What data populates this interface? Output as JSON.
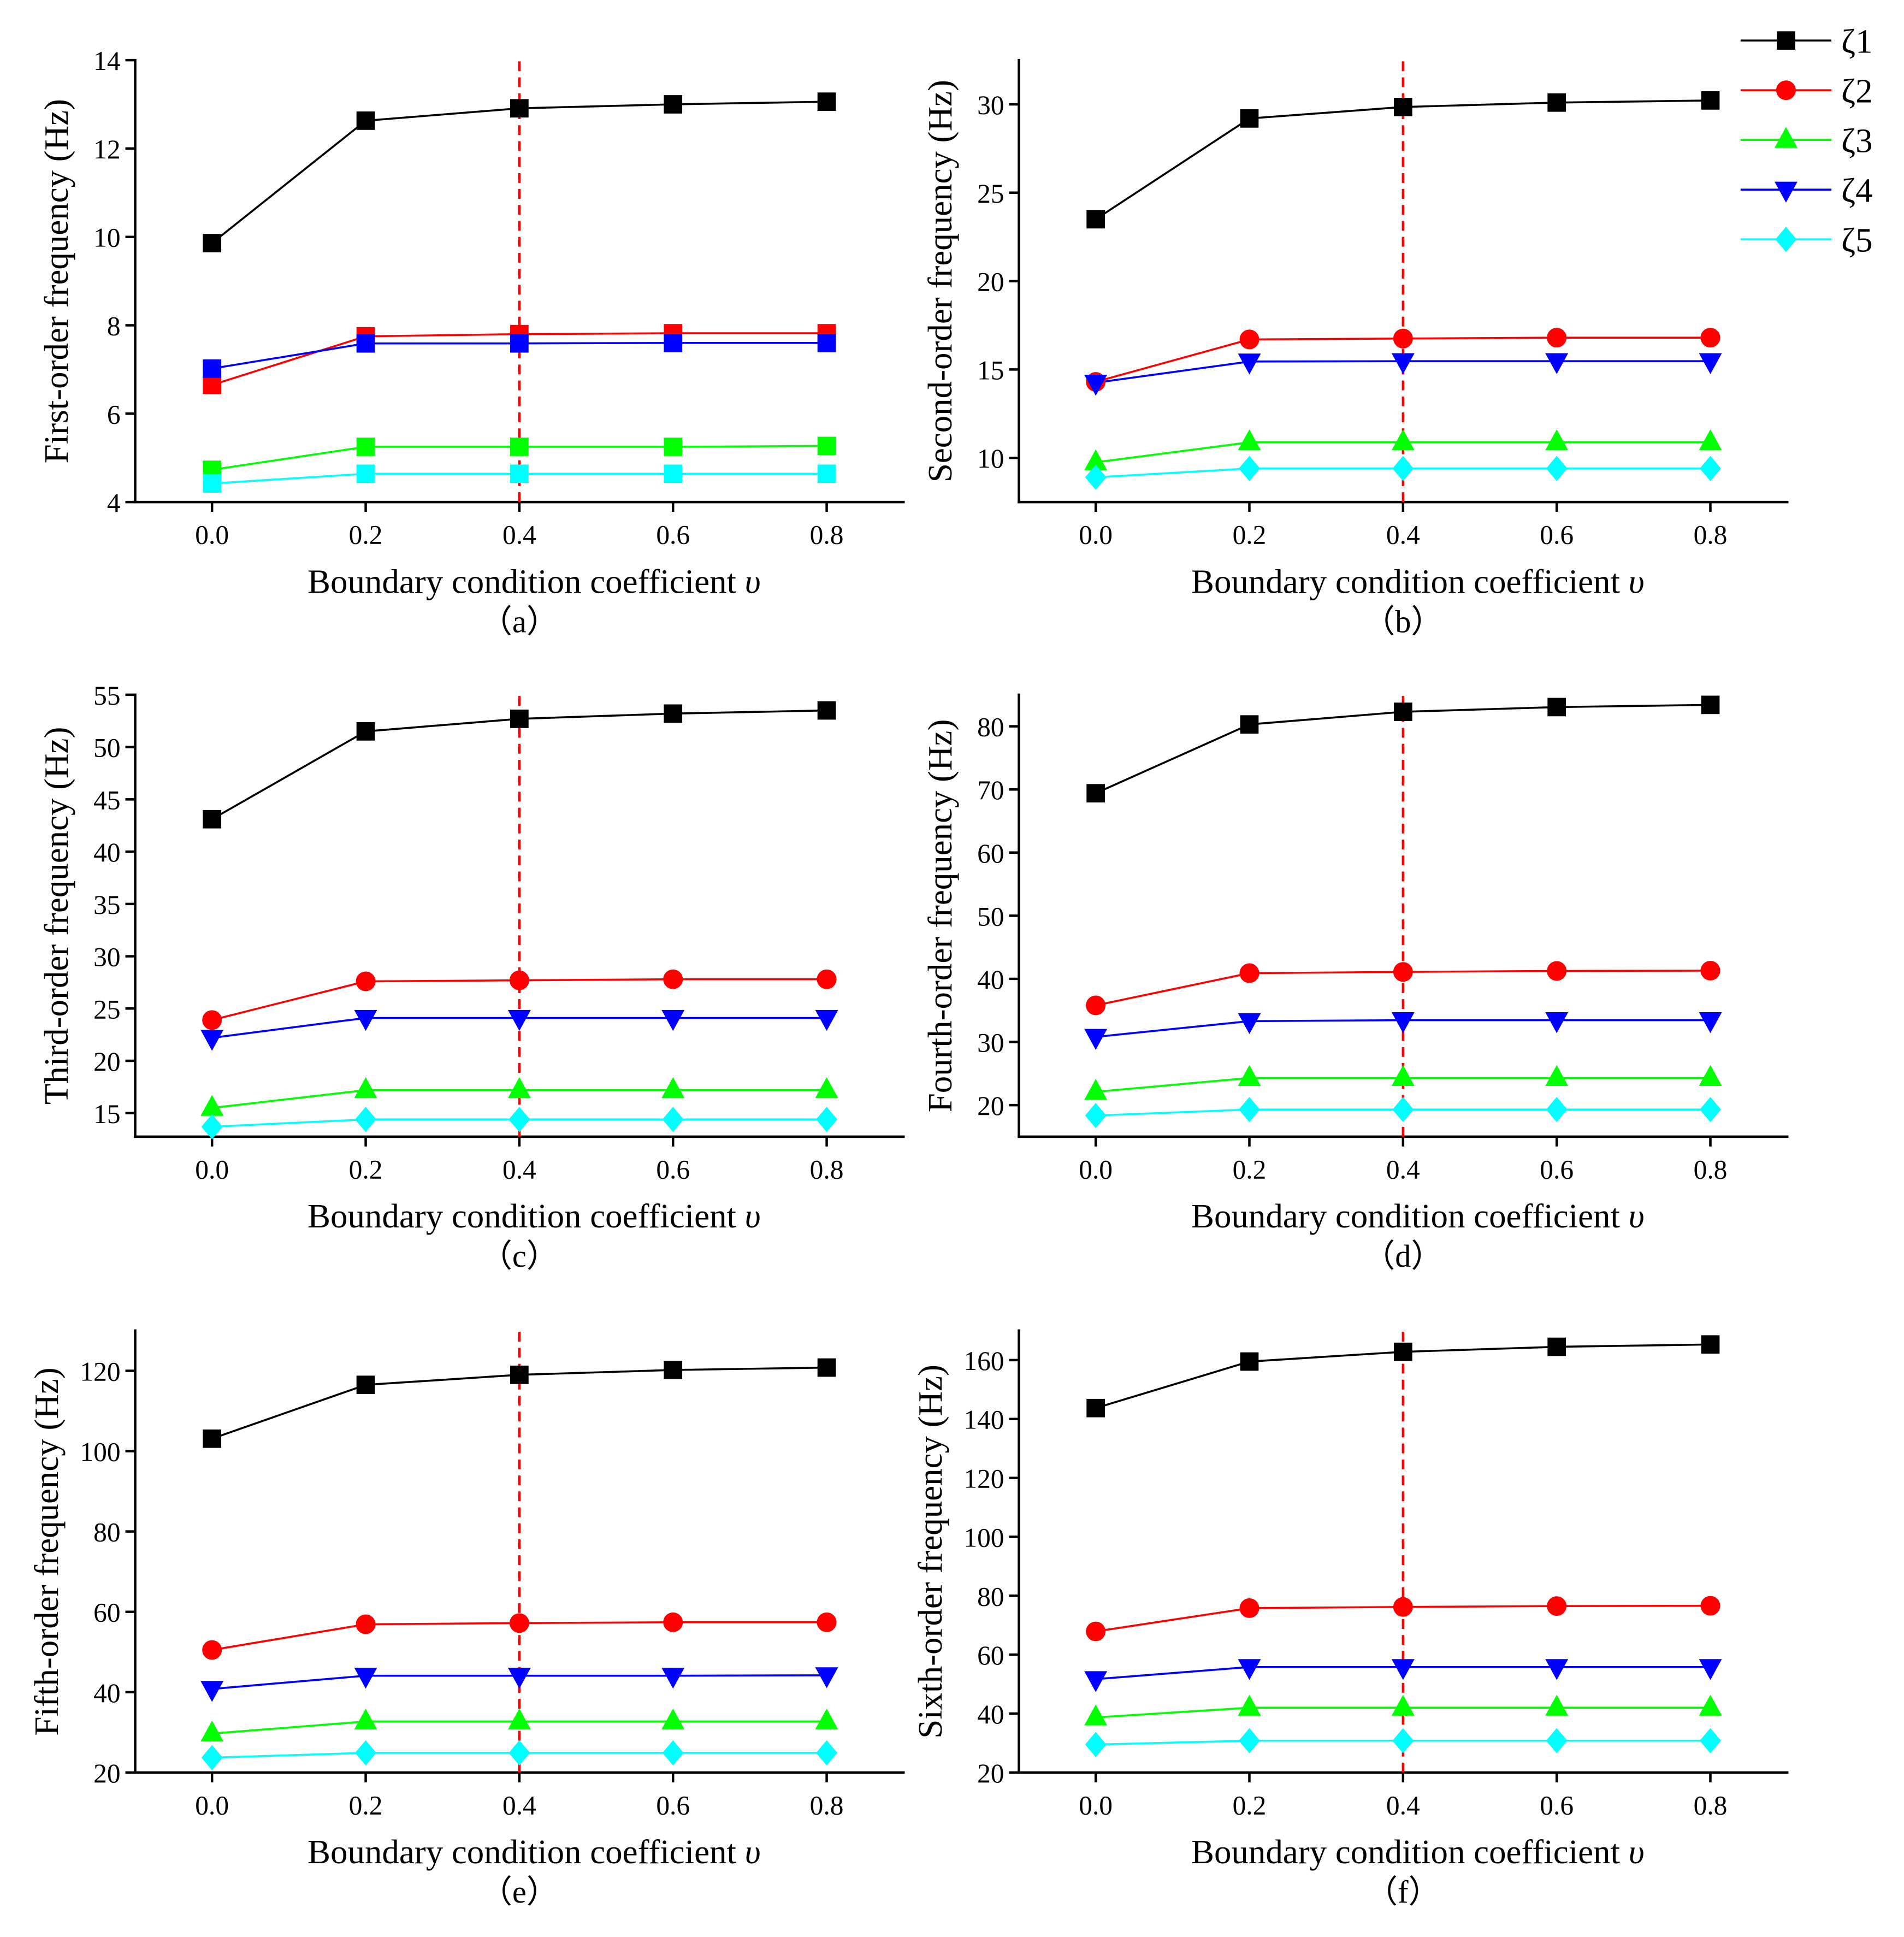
{
  "legend": [
    {
      "label": "ζ1",
      "color": "#000000",
      "marker": "square"
    },
    {
      "label": "ζ2",
      "color": "#ff0000",
      "marker": "circle"
    },
    {
      "label": "ζ3",
      "color": "#00ff00",
      "marker": "triangle-up"
    },
    {
      "label": "ζ4",
      "color": "#0000ff",
      "marker": "triangle-down"
    },
    {
      "label": "ζ5",
      "color": "#00ffff",
      "marker": "diamond"
    }
  ],
  "reference_line": {
    "x": 0.4,
    "color": "#ff0000"
  },
  "chart_data": [
    {
      "type": "line",
      "ylabel": "First-order frequency (Hz)",
      "xlabel": "Boundary condition coefficient",
      "xlabel_symbol": "υ",
      "caption": "（a）",
      "x": [
        0.0,
        0.2,
        0.4,
        0.6,
        0.8
      ],
      "xtick_labels": [
        "0.0",
        "0.2",
        "0.4",
        "0.6",
        "0.8"
      ],
      "xlim": [
        -0.1,
        0.9
      ],
      "ylim": [
        4,
        14
      ],
      "yticks": [
        4,
        6,
        8,
        10,
        12,
        14
      ],
      "marker_override": "square",
      "series": [
        {
          "name": "ζ1",
          "values": [
            9.86,
            12.63,
            12.91,
            13.0,
            13.06
          ]
        },
        {
          "name": "ζ2",
          "values": [
            6.65,
            7.75,
            7.8,
            7.82,
            7.82
          ]
        },
        {
          "name": "ζ3",
          "values": [
            4.73,
            5.25,
            5.25,
            5.25,
            5.27
          ]
        },
        {
          "name": "ζ4",
          "values": [
            7.02,
            7.59,
            7.59,
            7.6,
            7.6
          ]
        },
        {
          "name": "ζ5",
          "values": [
            4.42,
            4.64,
            4.64,
            4.64,
            4.64
          ]
        }
      ]
    },
    {
      "type": "line",
      "ylabel": "Second-order frequency (Hz)",
      "xlabel": "Boundary condition coefficient",
      "xlabel_symbol": "υ",
      "caption": "（b）",
      "x": [
        0.0,
        0.2,
        0.4,
        0.6,
        0.8
      ],
      "xtick_labels": [
        "0.0",
        "0.2",
        "0.4",
        "0.6",
        "0.8"
      ],
      "xlim": [
        -0.1,
        0.9
      ],
      "ylim": [
        7.5,
        32.5
      ],
      "yticks": [
        10,
        15,
        20,
        25,
        30
      ],
      "series": [
        {
          "name": "ζ1",
          "values": [
            23.5,
            29.2,
            29.85,
            30.1,
            30.22
          ]
        },
        {
          "name": "ζ2",
          "values": [
            14.3,
            16.7,
            16.75,
            16.8,
            16.8
          ]
        },
        {
          "name": "ζ3",
          "values": [
            9.75,
            10.88,
            10.88,
            10.88,
            10.88
          ]
        },
        {
          "name": "ζ4",
          "values": [
            14.25,
            15.45,
            15.47,
            15.47,
            15.47
          ]
        },
        {
          "name": "ζ5",
          "values": [
            8.9,
            9.4,
            9.4,
            9.4,
            9.4
          ]
        }
      ]
    },
    {
      "type": "line",
      "ylabel": "Third-order frequency (Hz)",
      "xlabel": "Boundary condition coefficient",
      "xlabel_symbol": "υ",
      "caption": "（c）",
      "x": [
        0.0,
        0.2,
        0.4,
        0.6,
        0.8
      ],
      "xtick_labels": [
        "0.0",
        "0.2",
        "0.4",
        "0.6",
        "0.8"
      ],
      "xlim": [
        -0.1,
        0.9
      ],
      "ylim": [
        12.75,
        55
      ],
      "yticks": [
        15,
        20,
        25,
        30,
        35,
        40,
        45,
        50,
        55
      ],
      "series": [
        {
          "name": "ζ1",
          "values": [
            43.1,
            51.5,
            52.7,
            53.2,
            53.5
          ]
        },
        {
          "name": "ζ2",
          "values": [
            23.9,
            27.6,
            27.7,
            27.8,
            27.8
          ]
        },
        {
          "name": "ζ3",
          "values": [
            15.5,
            17.2,
            17.2,
            17.2,
            17.2
          ]
        },
        {
          "name": "ζ4",
          "values": [
            22.2,
            24.1,
            24.1,
            24.1,
            24.1
          ]
        },
        {
          "name": "ζ5",
          "values": [
            13.7,
            14.4,
            14.4,
            14.4,
            14.4
          ]
        }
      ]
    },
    {
      "type": "line",
      "ylabel": "Fourth-order frequency (Hz)",
      "xlabel": "Boundary condition coefficient",
      "xlabel_symbol": "υ",
      "caption": "（d）",
      "x": [
        0.0,
        0.2,
        0.4,
        0.6,
        0.8
      ],
      "xtick_labels": [
        "0.0",
        "0.2",
        "0.4",
        "0.6",
        "0.8"
      ],
      "xlim": [
        -0.1,
        0.9
      ],
      "ylim": [
        15,
        85
      ],
      "yticks": [
        20,
        30,
        40,
        50,
        60,
        70,
        80
      ],
      "series": [
        {
          "name": "ζ1",
          "values": [
            69.4,
            80.3,
            82.3,
            83.05,
            83.4
          ]
        },
        {
          "name": "ζ2",
          "values": [
            35.8,
            40.9,
            41.1,
            41.25,
            41.3
          ]
        },
        {
          "name": "ζ3",
          "values": [
            22.1,
            24.3,
            24.3,
            24.3,
            24.3
          ]
        },
        {
          "name": "ζ4",
          "values": [
            30.8,
            33.3,
            33.45,
            33.45,
            33.45
          ]
        },
        {
          "name": "ζ5",
          "values": [
            18.35,
            19.3,
            19.3,
            19.3,
            19.3
          ]
        }
      ]
    },
    {
      "type": "line",
      "ylabel": "Fifth-order frequency (Hz)",
      "xlabel": "Boundary condition coefficient",
      "xlabel_symbol": "υ",
      "caption": "（e）",
      "x": [
        0.0,
        0.2,
        0.4,
        0.6,
        0.8
      ],
      "xtick_labels": [
        "0.0",
        "0.2",
        "0.4",
        "0.6",
        "0.8"
      ],
      "xlim": [
        -0.1,
        0.9
      ],
      "ylim": [
        20,
        130
      ],
      "yticks": [
        20,
        40,
        60,
        80,
        100,
        120
      ],
      "series": [
        {
          "name": "ζ1",
          "values": [
            103.1,
            116.5,
            119.0,
            120.2,
            120.8
          ]
        },
        {
          "name": "ζ2",
          "values": [
            50.5,
            56.9,
            57.2,
            57.4,
            57.4
          ]
        },
        {
          "name": "ζ3",
          "values": [
            29.7,
            32.7,
            32.7,
            32.7,
            32.7
          ]
        },
        {
          "name": "ζ4",
          "values": [
            40.8,
            44.1,
            44.1,
            44.1,
            44.2
          ]
        },
        {
          "name": "ζ5",
          "values": [
            23.7,
            24.9,
            24.9,
            24.9,
            24.9
          ]
        }
      ]
    },
    {
      "type": "line",
      "ylabel": "Sixth-order frequency (Hz)",
      "xlabel": "Boundary condition coefficient",
      "xlabel_symbol": "υ",
      "caption": "（f）",
      "x": [
        0.0,
        0.2,
        0.4,
        0.6,
        0.8
      ],
      "xtick_labels": [
        "0.0",
        "0.2",
        "0.4",
        "0.6",
        "0.8"
      ],
      "xlim": [
        -0.1,
        0.9
      ],
      "ylim": [
        20,
        170
      ],
      "yticks": [
        20,
        40,
        60,
        80,
        100,
        120,
        140,
        160
      ],
      "series": [
        {
          "name": "ζ1",
          "values": [
            143.7,
            159.5,
            162.8,
            164.5,
            165.3
          ]
        },
        {
          "name": "ζ2",
          "values": [
            67.9,
            75.8,
            76.2,
            76.5,
            76.6
          ]
        },
        {
          "name": "ζ3",
          "values": [
            38.7,
            42.0,
            42.0,
            42.0,
            42.0
          ]
        },
        {
          "name": "ζ4",
          "values": [
            51.7,
            55.8,
            55.8,
            55.8,
            55.8
          ]
        },
        {
          "name": "ζ5",
          "values": [
            29.5,
            30.8,
            30.8,
            30.8,
            30.8
          ]
        }
      ]
    }
  ]
}
